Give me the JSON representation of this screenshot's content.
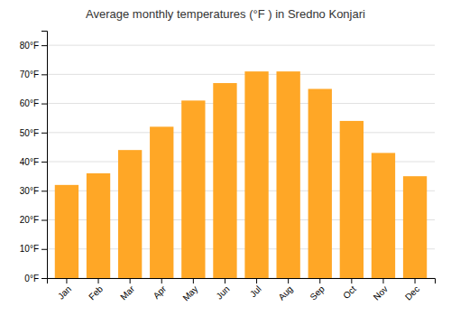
{
  "chart_data": {
    "type": "bar",
    "title": "Average monthly temperatures (°F ) in Sredno Konjari",
    "categories": [
      "Jan",
      "Feb",
      "Mar",
      "Apr",
      "May",
      "Jun",
      "Jul",
      "Aug",
      "Sep",
      "Oct",
      "Nov",
      "Dec"
    ],
    "values": [
      32,
      36,
      44,
      52,
      61,
      67,
      71,
      71,
      65,
      54,
      43,
      35
    ],
    "color": "#FFA726",
    "ylim": [
      0,
      85
    ],
    "yticks": [
      {
        "value": 0,
        "label": "0°F"
      },
      {
        "value": 10,
        "label": "10°F"
      },
      {
        "value": 20,
        "label": "20°F"
      },
      {
        "value": 30,
        "label": "30°F"
      },
      {
        "value": 40,
        "label": "40°F"
      },
      {
        "value": 50,
        "label": "50°F"
      },
      {
        "value": 60,
        "label": "60°F"
      },
      {
        "value": 70,
        "label": "70°F"
      },
      {
        "value": 80,
        "label": "80°F"
      }
    ],
    "grid": true
  }
}
